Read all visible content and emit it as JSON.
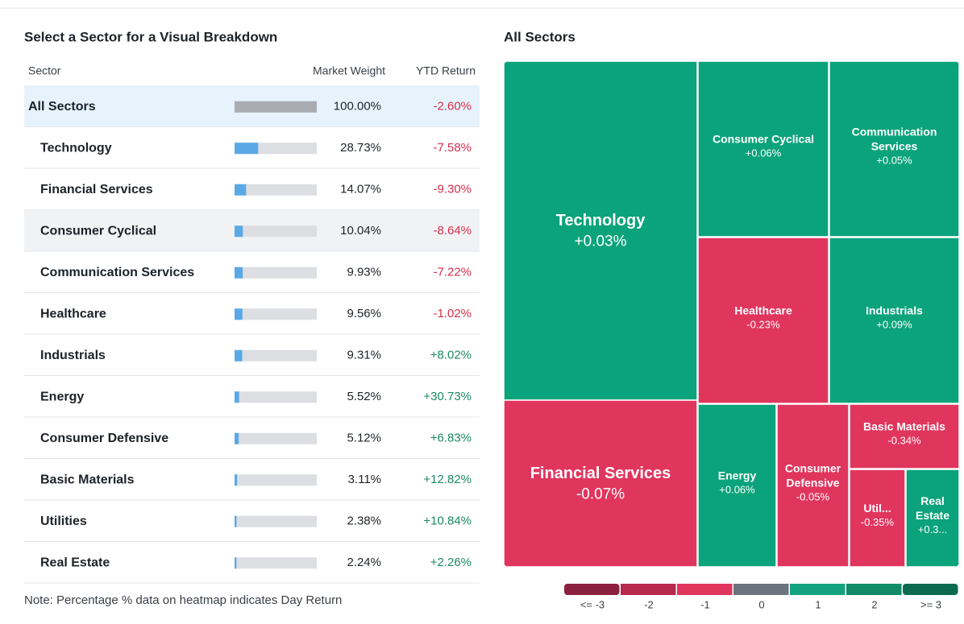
{
  "left": {
    "title": "Select a Sector for a Visual Breakdown",
    "headers": [
      "Sector",
      "Market Weight",
      "YTD Return"
    ],
    "rows": [
      {
        "name": "All Sectors",
        "weight": 100.0,
        "weight_label": "100.00%",
        "ytd": "-2.60%"
      },
      {
        "name": "Technology",
        "weight": 28.73,
        "weight_label": "28.73%",
        "ytd": "-7.58%"
      },
      {
        "name": "Financial Services",
        "weight": 14.07,
        "weight_label": "14.07%",
        "ytd": "-9.30%"
      },
      {
        "name": "Consumer Cyclical",
        "weight": 10.04,
        "weight_label": "10.04%",
        "ytd": "-8.64%"
      },
      {
        "name": "Communication Services",
        "weight": 9.93,
        "weight_label": "9.93%",
        "ytd": "-7.22%"
      },
      {
        "name": "Healthcare",
        "weight": 9.56,
        "weight_label": "9.56%",
        "ytd": "-1.02%"
      },
      {
        "name": "Industrials",
        "weight": 9.31,
        "weight_label": "9.31%",
        "ytd": "+8.02%"
      },
      {
        "name": "Energy",
        "weight": 5.52,
        "weight_label": "5.52%",
        "ytd": "+30.73%"
      },
      {
        "name": "Consumer Defensive",
        "weight": 5.12,
        "weight_label": "5.12%",
        "ytd": "+6.83%"
      },
      {
        "name": "Basic Materials",
        "weight": 3.11,
        "weight_label": "3.11%",
        "ytd": "+12.82%"
      },
      {
        "name": "Utilities",
        "weight": 2.38,
        "weight_label": "2.38%",
        "ytd": "+10.84%"
      },
      {
        "name": "Real Estate",
        "weight": 2.24,
        "weight_label": "2.24%",
        "ytd": "+2.26%"
      }
    ],
    "note": "Note: Percentage % data on heatmap indicates Day Return"
  },
  "right": {
    "title": "All Sectors",
    "tiles": [
      {
        "lines": [
          "Technology"
        ],
        "change": "+0.03%",
        "color": "#0ba37b"
      },
      {
        "lines": [
          "Financial Services"
        ],
        "change": "-0.07%",
        "color": "#e0365e"
      },
      {
        "lines": [
          "Consumer Cyclical"
        ],
        "change": "+0.06%",
        "color": "#0ba37b"
      },
      {
        "lines": [
          "Communication",
          "Services"
        ],
        "change": "+0.05%",
        "color": "#0ba37b"
      },
      {
        "lines": [
          "Healthcare"
        ],
        "change": "-0.23%",
        "color": "#e0365e"
      },
      {
        "lines": [
          "Industrials"
        ],
        "change": "+0.09%",
        "color": "#0ba37b"
      },
      {
        "lines": [
          "Energy"
        ],
        "change": "+0.06%",
        "color": "#0ba37b"
      },
      {
        "lines": [
          "Consumer",
          "Defensive"
        ],
        "change": "-0.05%",
        "color": "#e0365e"
      },
      {
        "lines": [
          "Basic Materials"
        ],
        "change": "-0.34%",
        "color": "#e0365e"
      },
      {
        "lines": [
          "Util..."
        ],
        "change": "-0.35%",
        "color": "#e0365e"
      },
      {
        "lines": [
          "Real",
          "Estate"
        ],
        "change": "+0.3...",
        "color": "#0ba37b"
      }
    ],
    "legend": [
      {
        "label": "<= -3",
        "color": "#8c2040"
      },
      {
        "label": "-2",
        "color": "#b82a4d"
      },
      {
        "label": "-1",
        "color": "#e0365e"
      },
      {
        "label": "0",
        "color": "#6b737c"
      },
      {
        "label": "1",
        "color": "#14a37e"
      },
      {
        "label": "2",
        "color": "#108a68"
      },
      {
        "label": ">= 3",
        "color": "#0b6a50"
      }
    ]
  }
}
